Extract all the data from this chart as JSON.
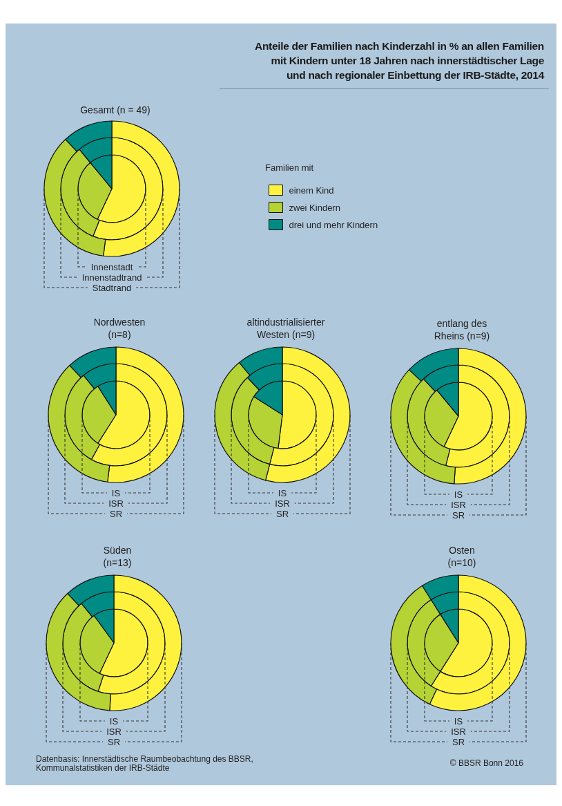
{
  "chart_data": [
    {
      "type": "donut",
      "title": "Anteile der Familien nach Kinderzahl in % an allen Familien\nmit Kindern unter 18 Jahren nach innerstädtischer Lage\nund nach regionaler Einbettung der IRB-Städte, 2014",
      "subtitle": "Gesamt (n = 49)",
      "legend_title": "Familien mit",
      "legend": "right",
      "categories": [
        "einem Kind",
        "zwei Kindern",
        "drei und mehr Kindern"
      ],
      "colors": [
        "#fff23f",
        "#b5d334",
        "#008b84"
      ],
      "series": [
        {
          "name": "Innenstadt",
          "values": [
            57,
            32,
            11
          ]
        },
        {
          "name": "Innenstadtrand",
          "values": [
            56,
            33,
            11
          ]
        },
        {
          "name": "Stadtrand",
          "values": [
            52,
            36,
            12
          ]
        }
      ],
      "annotations": [
        "Datenbasis: Innerstädtische Raumbeobachtung des BBSR,\nKommunalstatistiken der IRB-Städte",
        "© BBSR Bonn 2016"
      ]
    },
    {
      "type": "donut",
      "title": "Nordwesten\n(n=8)",
      "colors": [
        "#fff23f",
        "#b5d334",
        "#008b84"
      ],
      "series": [
        {
          "name": "IS",
          "values": [
            59,
            32,
            9
          ]
        },
        {
          "name": "ISR",
          "values": [
            58,
            31,
            11
          ]
        },
        {
          "name": "SR",
          "values": [
            52,
            36,
            12
          ]
        }
      ]
    },
    {
      "type": "donut",
      "title": "altindustrialisierter\nWesten (n=9)",
      "colors": [
        "#fff23f",
        "#b5d334",
        "#008b84"
      ],
      "series": [
        {
          "name": "IS",
          "values": [
            52,
            32,
            16
          ]
        },
        {
          "name": "ISR",
          "values": [
            54,
            34,
            12
          ]
        },
        {
          "name": "SR",
          "values": [
            54,
            35,
            11
          ]
        }
      ]
    },
    {
      "type": "donut",
      "title": "entlang des\nRheins (n=9)",
      "colors": [
        "#fff23f",
        "#b5d334",
        "#008b84"
      ],
      "series": [
        {
          "name": "IS",
          "values": [
            57,
            32,
            11
          ]
        },
        {
          "name": "ISR",
          "values": [
            54,
            34,
            12
          ]
        },
        {
          "name": "SR",
          "values": [
            51,
            36,
            13
          ]
        }
      ]
    },
    {
      "type": "donut",
      "title": "Süden\n(n=13)",
      "colors": [
        "#fff23f",
        "#b5d334",
        "#008b84"
      ],
      "series": [
        {
          "name": "IS",
          "values": [
            57,
            33,
            10
          ]
        },
        {
          "name": "ISR",
          "values": [
            55,
            34,
            11
          ]
        },
        {
          "name": "SR",
          "values": [
            51,
            37,
            12
          ]
        }
      ]
    },
    {
      "type": "donut",
      "title": "Osten\n(n=10)",
      "colors": [
        "#fff23f",
        "#b5d334",
        "#008b84"
      ],
      "series": [
        {
          "name": "IS",
          "values": [
            59,
            32,
            9
          ]
        },
        {
          "name": "ISR",
          "values": [
            59,
            32,
            9
          ]
        },
        {
          "name": "SR",
          "values": [
            57,
            34,
            9
          ]
        }
      ]
    }
  ]
}
